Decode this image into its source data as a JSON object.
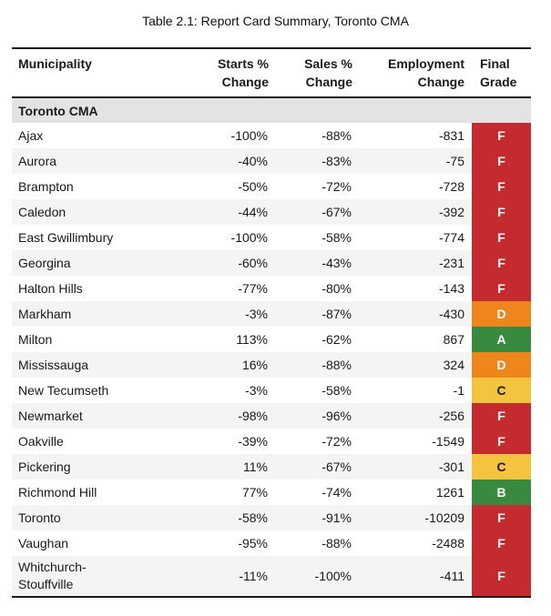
{
  "chart_data": {
    "type": "table",
    "title": "Table 2.1: Report Card Summary, Toronto CMA",
    "columns": [
      "Municipality",
      "Starts % Change",
      "Sales % Change",
      "Employment Change",
      "Final Grade"
    ],
    "group_row": "Toronto CMA",
    "rows": [
      {
        "municipality": "Ajax",
        "starts_pct_change": "-100%",
        "sales_pct_change": "-88%",
        "employment_change": "-831",
        "final_grade": "F"
      },
      {
        "municipality": "Aurora",
        "starts_pct_change": "-40%",
        "sales_pct_change": "-83%",
        "employment_change": "-75",
        "final_grade": "F"
      },
      {
        "municipality": "Brampton",
        "starts_pct_change": "-50%",
        "sales_pct_change": "-72%",
        "employment_change": "-728",
        "final_grade": "F"
      },
      {
        "municipality": "Caledon",
        "starts_pct_change": "-44%",
        "sales_pct_change": "-67%",
        "employment_change": "-392",
        "final_grade": "F"
      },
      {
        "municipality": "East Gwillimbury",
        "starts_pct_change": "-100%",
        "sales_pct_change": "-58%",
        "employment_change": "-774",
        "final_grade": "F"
      },
      {
        "municipality": "Georgina",
        "starts_pct_change": "-60%",
        "sales_pct_change": "-43%",
        "employment_change": "-231",
        "final_grade": "F"
      },
      {
        "municipality": "Halton Hills",
        "starts_pct_change": "-77%",
        "sales_pct_change": "-80%",
        "employment_change": "-143",
        "final_grade": "F"
      },
      {
        "municipality": "Markham",
        "starts_pct_change": "-3%",
        "sales_pct_change": "-87%",
        "employment_change": "-430",
        "final_grade": "D"
      },
      {
        "municipality": "Milton",
        "starts_pct_change": "113%",
        "sales_pct_change": "-62%",
        "employment_change": "867",
        "final_grade": "A"
      },
      {
        "municipality": "Mississauga",
        "starts_pct_change": "16%",
        "sales_pct_change": "-88%",
        "employment_change": "324",
        "final_grade": "D"
      },
      {
        "municipality": "New Tecumseth",
        "starts_pct_change": "-3%",
        "sales_pct_change": "-58%",
        "employment_change": "-1",
        "final_grade": "C"
      },
      {
        "municipality": "Newmarket",
        "starts_pct_change": "-98%",
        "sales_pct_change": "-96%",
        "employment_change": "-256",
        "final_grade": "F"
      },
      {
        "municipality": "Oakville",
        "starts_pct_change": "-39%",
        "sales_pct_change": "-72%",
        "employment_change": "-1549",
        "final_grade": "F"
      },
      {
        "municipality": "Pickering",
        "starts_pct_change": "11%",
        "sales_pct_change": "-67%",
        "employment_change": "-301",
        "final_grade": "C"
      },
      {
        "municipality": "Richmond Hill",
        "starts_pct_change": "77%",
        "sales_pct_change": "-74%",
        "employment_change": "1261",
        "final_grade": "B"
      },
      {
        "municipality": "Toronto",
        "starts_pct_change": "-58%",
        "sales_pct_change": "-91%",
        "employment_change": "-10209",
        "final_grade": "F"
      },
      {
        "municipality": "Vaughan",
        "starts_pct_change": "-95%",
        "sales_pct_change": "-88%",
        "employment_change": "-2488",
        "final_grade": "F"
      },
      {
        "municipality": "Whitchurch-Stouffville",
        "starts_pct_change": "-11%",
        "sales_pct_change": "-100%",
        "employment_change": "-411",
        "final_grade": "F"
      }
    ]
  },
  "display": {
    "columns": [
      "Municipality",
      "Starts %\nChange",
      "Sales %\nChange",
      "Employment\nChange",
      "Final\nGrade"
    ]
  },
  "grade_styles": {
    "A": {
      "bg": "#398A3F",
      "fg": "#FFFFFF"
    },
    "B": {
      "bg": "#398A3F",
      "fg": "#FFFFFF"
    },
    "C": {
      "bg": "#F5C43E",
      "fg": "#1A1A1A"
    },
    "D": {
      "bg": "#EF861C",
      "fg": "#FFFFFF"
    },
    "F": {
      "bg": "#C32B2F",
      "fg": "#FFFFFF"
    }
  },
  "colors": {
    "group_row_bg": "#E3E3E3",
    "stripe_row_bg": "#F4F4F4",
    "border": "#1A1A1A"
  }
}
